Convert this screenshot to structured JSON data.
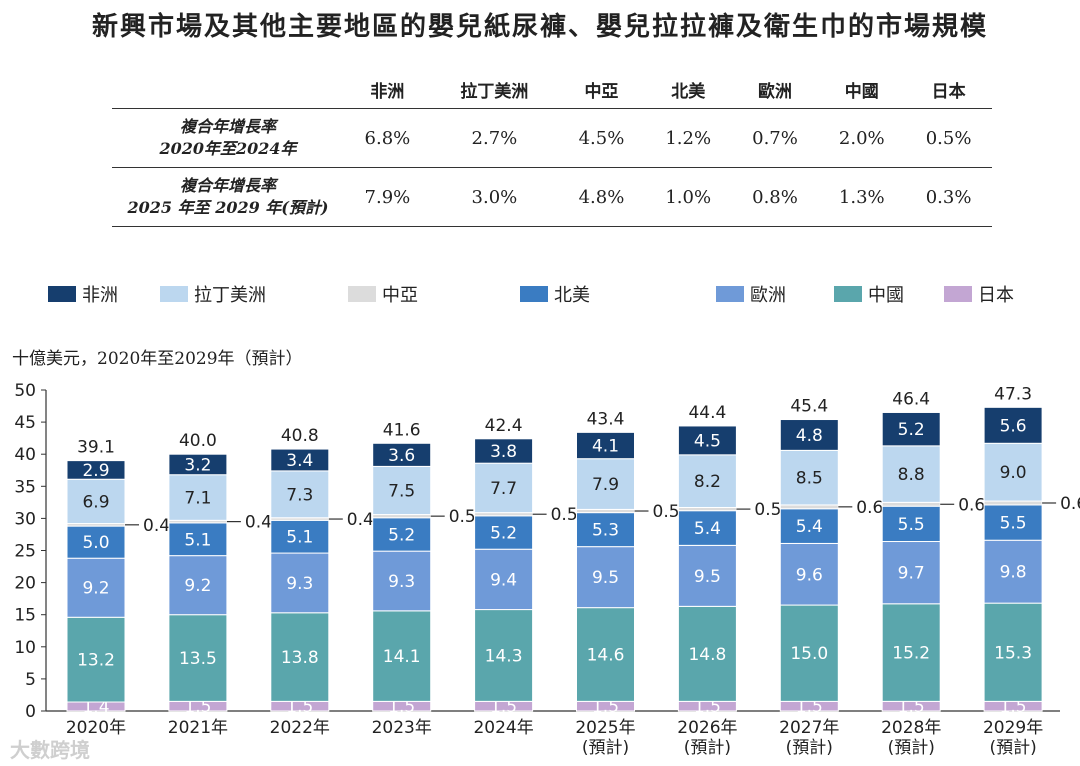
{
  "title": "新興市場及其他主要地區的嬰兒紙尿褲、嬰兒拉拉褲及衛生巾的市場規模",
  "cagr_table": {
    "columns": [
      "非洲",
      "拉丁美洲",
      "中亞",
      "北美",
      "歐洲",
      "中國",
      "日本"
    ],
    "rows": [
      {
        "label_line1": "複合年增長率",
        "label_line2": "2020年至2024年",
        "values": [
          "6.8%",
          "2.7%",
          "4.5%",
          "1.2%",
          "0.7%",
          "2.0%",
          "0.5%"
        ]
      },
      {
        "label_line1": "複合年增長率",
        "label_line2": "2025 年至 2029 年(預計)",
        "values": [
          "7.9%",
          "3.0%",
          "4.8%",
          "1.0%",
          "0.8%",
          "1.3%",
          "0.3%"
        ]
      }
    ]
  },
  "watermark": "大數跨境",
  "chart_data": {
    "type": "bar",
    "stacked": true,
    "unit_label": "十億美元，2020年至2029年（預計）",
    "categories": [
      "2020年",
      "2021年",
      "2022年",
      "2023年",
      "2024年",
      "2025年",
      "2026年",
      "2027年",
      "2028年",
      "2029年"
    ],
    "category_sublabels": [
      "",
      "",
      "",
      "",
      "",
      "(預計)",
      "(預計)",
      "(預計)",
      "(預計)",
      "(預計)"
    ],
    "totals": [
      "39.1",
      "40.0",
      "40.8",
      "41.6",
      "42.4",
      "43.4",
      "44.4",
      "45.4",
      "46.4",
      "47.3"
    ],
    "ylim": [
      0,
      50
    ],
    "yticks": [
      0,
      5,
      10,
      15,
      20,
      25,
      30,
      35,
      40,
      45,
      50
    ],
    "legend": [
      "非洲",
      "拉丁美洲",
      "中亞",
      "北美",
      "歐洲",
      "中國",
      "日本"
    ],
    "stack_order_bottom_to_top": [
      "日本",
      "中國",
      "歐洲",
      "北美",
      "中亞",
      "拉丁美洲",
      "非洲"
    ],
    "series": [
      {
        "name": "日本",
        "color": "#c3a6d3",
        "label_color": "#ffffff",
        "values": [
          1.4,
          1.5,
          1.5,
          1.5,
          1.5,
          1.5,
          1.5,
          1.5,
          1.5,
          1.5
        ]
      },
      {
        "name": "中國",
        "color": "#5aa6ac",
        "label_color": "#ffffff",
        "values": [
          13.2,
          13.5,
          13.8,
          14.1,
          14.3,
          14.6,
          14.8,
          15.0,
          15.2,
          15.3
        ]
      },
      {
        "name": "歐洲",
        "color": "#6f9ad8",
        "label_color": "#ffffff",
        "values": [
          9.2,
          9.2,
          9.3,
          9.3,
          9.4,
          9.5,
          9.5,
          9.6,
          9.7,
          9.8
        ]
      },
      {
        "name": "北美",
        "color": "#3a7cc2",
        "label_color": "#ffffff",
        "values": [
          5.0,
          5.1,
          5.1,
          5.2,
          5.2,
          5.3,
          5.4,
          5.4,
          5.5,
          5.5
        ]
      },
      {
        "name": "中亞",
        "color": "#dcdcdc",
        "label_color": "#222222",
        "outside_label": true,
        "values": [
          0.4,
          0.4,
          0.4,
          0.5,
          0.5,
          0.5,
          0.5,
          0.6,
          0.6,
          0.6
        ]
      },
      {
        "name": "拉丁美洲",
        "color": "#bcd7ef",
        "label_color": "#222222",
        "values": [
          6.9,
          7.1,
          7.3,
          7.5,
          7.7,
          7.9,
          8.2,
          8.5,
          8.8,
          9.0
        ]
      },
      {
        "name": "非洲",
        "color": "#163e6e",
        "label_color": "#ffffff",
        "values": [
          2.9,
          3.2,
          3.4,
          3.6,
          3.8,
          4.1,
          4.5,
          4.8,
          5.2,
          5.6
        ]
      }
    ]
  }
}
